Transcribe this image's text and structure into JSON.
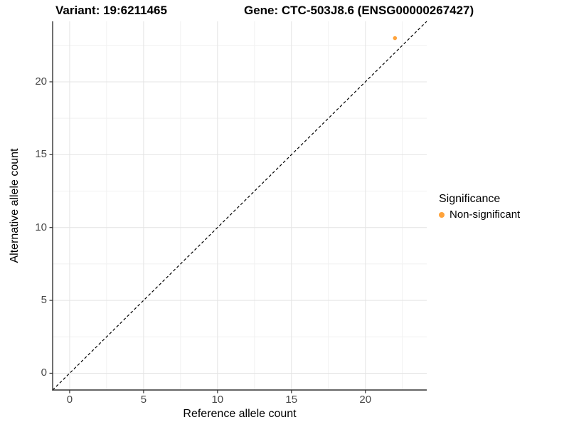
{
  "figure": {
    "title_left": "Variant: 19:6211465",
    "title_right": "Gene: CTC-503J8.6 (ENSG00000267427)"
  },
  "legend": {
    "title": "Significance",
    "items": [
      {
        "label": "Non-significant",
        "color": "#FFA33B"
      }
    ]
  },
  "chart_data": {
    "type": "scatter",
    "title_left": "Variant: 19:6211465",
    "title_right": "Gene: CTC-503J8.6 (ENSG00000267427)",
    "xlabel": "Reference allele count",
    "ylabel": "Alternative allele count",
    "xlim": [
      -1.15,
      24.15
    ],
    "ylim": [
      -1.15,
      24.15
    ],
    "x_ticks": [
      0,
      5,
      10,
      15,
      20
    ],
    "y_ticks": [
      0,
      5,
      10,
      15,
      20
    ],
    "x_minor_ticks": [
      2.5,
      7.5,
      12.5,
      17.5,
      22.5
    ],
    "y_minor_ticks": [
      2.5,
      7.5,
      12.5,
      17.5,
      22.5
    ],
    "grid": true,
    "legend_position": "right",
    "legend_title": "Significance",
    "series": [
      {
        "name": "Non-significant",
        "color": "#FFA33B",
        "points": [
          {
            "x": 22,
            "y": 23
          }
        ]
      }
    ],
    "reference_line": {
      "slope": 1,
      "intercept": 0,
      "style": "dashed",
      "color": "#000000"
    },
    "colors": {
      "axis_line": "#333333",
      "tick_mark": "#333333",
      "grid_major": "#E4E4E4",
      "grid_minor": "#F1F1F1",
      "panel_background": "#FFFFFF"
    }
  }
}
